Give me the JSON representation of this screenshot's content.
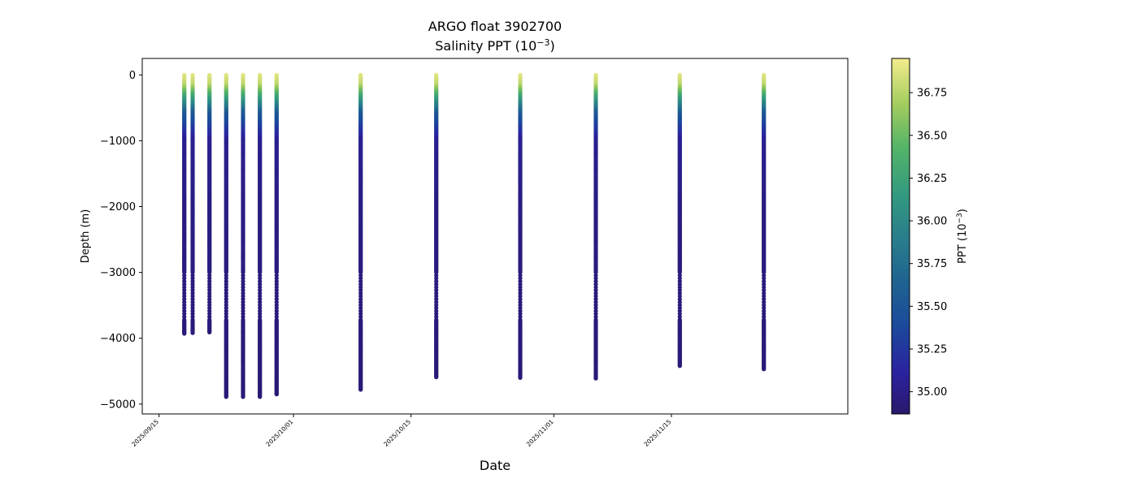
{
  "chart_data": {
    "type": "scatter",
    "title": "ARGO float 3902700",
    "subtitle_main": "Salinity PPT (10",
    "subtitle_sup": "−3",
    "subtitle_close": ")",
    "xlabel": "Date",
    "ylabel": "Depth (m)",
    "x_range": [
      "2025-09-13",
      "2025-12-06"
    ],
    "ylim": [
      -5150,
      250
    ],
    "x_ticks": [
      "2025/09/15",
      "2025/10/01",
      "2025/10/15",
      "2025/11/01",
      "2025/11/15"
    ],
    "y_ticks": [
      0,
      -1000,
      -2000,
      -3000,
      -4000,
      -5000
    ],
    "colorbar": {
      "label_main": "PPT (10",
      "label_sup": "−3",
      "label_close": ")",
      "colormap": "haline",
      "range": [
        34.87,
        36.95
      ],
      "ticks": [
        "35.00",
        "35.25",
        "35.50",
        "35.75",
        "36.00",
        "36.25",
        "36.50",
        "36.75"
      ]
    },
    "profiles": [
      {
        "date": "2025-09-18",
        "max_depth": 3930
      },
      {
        "date": "2025-09-19",
        "max_depth": 3920
      },
      {
        "date": "2025-09-21",
        "max_depth": 3910
      },
      {
        "date": "2025-09-23",
        "max_depth": 4890
      },
      {
        "date": "2025-09-25",
        "max_depth": 4890
      },
      {
        "date": "2025-09-27",
        "max_depth": 4890
      },
      {
        "date": "2025-09-29",
        "max_depth": 4850
      },
      {
        "date": "2025-10-09",
        "max_depth": 4780
      },
      {
        "date": "2025-10-18",
        "max_depth": 4590
      },
      {
        "date": "2025-10-28",
        "max_depth": 4600
      },
      {
        "date": "2025-11-06",
        "max_depth": 4610
      },
      {
        "date": "2025-11-16",
        "max_depth": 4420
      },
      {
        "date": "2025-11-26",
        "max_depth": 4470
      }
    ]
  }
}
